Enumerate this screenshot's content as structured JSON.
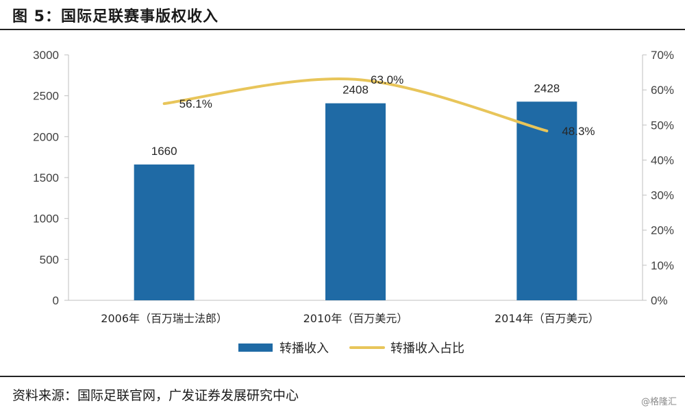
{
  "figure": {
    "title": "图 5：国际足联赛事版权收入",
    "source": "资料来源：国际足联官网，广发证券发展研究中心",
    "watermark": "@格隆汇"
  },
  "chart_data": {
    "type": "bar",
    "categories": [
      "2006年（百万瑞士法郎）",
      "2010年（百万美元）",
      "2014年（百万美元）"
    ],
    "series": [
      {
        "name": "转播收入",
        "type": "bar",
        "axis": "left",
        "values": [
          1660,
          2408,
          2428
        ],
        "labels": [
          "1660",
          "2408",
          "2428"
        ],
        "color": "#1f6aa5"
      },
      {
        "name": "转播收入占比",
        "type": "line",
        "axis": "right",
        "values": [
          56.1,
          63.0,
          48.3
        ],
        "labels": [
          "56.1%",
          "63.0%",
          "48.3%"
        ],
        "color": "#e8c55a"
      }
    ],
    "y_left": {
      "min": 0,
      "max": 3000,
      "ticks": [
        "0",
        "500",
        "1000",
        "1500",
        "2000",
        "2500",
        "3000"
      ]
    },
    "y_right": {
      "min": 0,
      "max": 70,
      "ticks": [
        "0%",
        "10%",
        "20%",
        "30%",
        "40%",
        "50%",
        "60%",
        "70%"
      ]
    },
    "grid": false,
    "legend_position": "bottom"
  }
}
